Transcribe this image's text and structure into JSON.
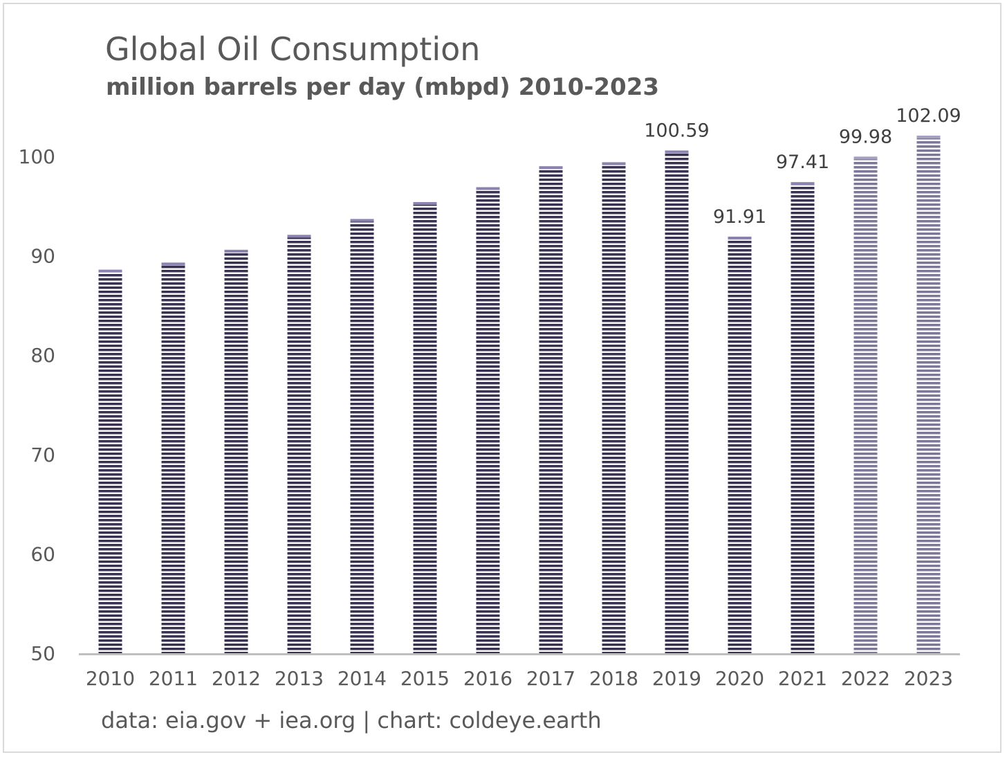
{
  "chart_data": {
    "type": "bar",
    "title": "Global Oil Consumption",
    "subtitle": "million barrels per day (mbpd) 2010-2023",
    "categories": [
      "2010",
      "2011",
      "2012",
      "2013",
      "2014",
      "2015",
      "2016",
      "2017",
      "2018",
      "2019",
      "2020",
      "2021",
      "2022",
      "2023"
    ],
    "values": [
      88.6,
      89.3,
      90.6,
      92.1,
      93.7,
      95.4,
      96.9,
      99.0,
      99.4,
      100.59,
      91.91,
      97.41,
      99.98,
      102.09
    ],
    "data_labels": [
      "",
      "",
      "",
      "",
      "",
      "",
      "",
      "",
      "",
      "100.59",
      "91.91",
      "97.41",
      "99.98",
      "102.09"
    ],
    "ylim": [
      50,
      100
    ],
    "yticks": [
      "50",
      "60",
      "70",
      "80",
      "90",
      "100"
    ],
    "ytick_values": [
      50,
      60,
      70,
      80,
      90,
      100
    ],
    "xlabel": "",
    "ylabel": "",
    "grid": false,
    "legend": "none",
    "colors": {
      "bar": "#3a3350",
      "bar_light": "#7d7896",
      "stripe": "#ffffff",
      "axis": "#bfbfbf"
    },
    "bar_style": {
      "light_from_index": 12
    }
  },
  "source_note": "data: eia.gov + iea.org | chart: coldeye.earth"
}
